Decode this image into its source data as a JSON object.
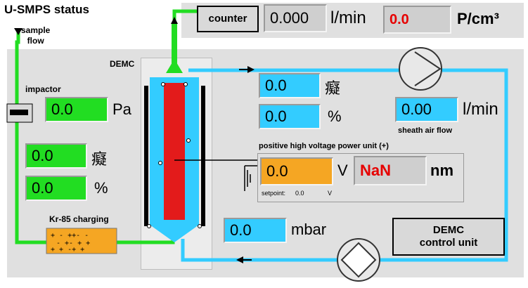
{
  "title": "U-SMPS status",
  "sample_flow_label": "sample\nflow",
  "demc_label": "DEMC",
  "impactor": {
    "label": "impactor",
    "value": "0.0",
    "unit": "Pa"
  },
  "counter": {
    "button": "counter",
    "flow_value": "0.000",
    "flow_unit": "l/min",
    "conc_value": "0.0",
    "conc_unit": "P/cm³"
  },
  "left_fields": [
    {
      "value": "0.0",
      "unit": "癡"
    },
    {
      "value": "0.0",
      "unit": "%"
    }
  ],
  "right_fields": [
    {
      "value": "0.0",
      "unit": "癡"
    },
    {
      "value": "0.0",
      "unit": "%"
    }
  ],
  "sheath": {
    "value": "0.00",
    "unit": "l/min",
    "label": "sheath air flow"
  },
  "hv": {
    "label": "positive high voltage power unit (+)",
    "value": "0.0",
    "unit": "V",
    "size_value": "NaN",
    "size_unit": "nm",
    "setpoint_label": "setpoint:",
    "setpoint_value": "0.0",
    "setpoint_unit": "V"
  },
  "kr85": {
    "label": "Kr-85 charging"
  },
  "pressure": {
    "value": "0.0",
    "unit": "mbar"
  },
  "control_unit": {
    "label": "DEMC\ncontrol unit"
  },
  "colors": {
    "green": "#22dd22",
    "cyan": "#33ccff",
    "orange": "#f5a623",
    "red": "#e60000",
    "panel": "#e0e0e0"
  }
}
